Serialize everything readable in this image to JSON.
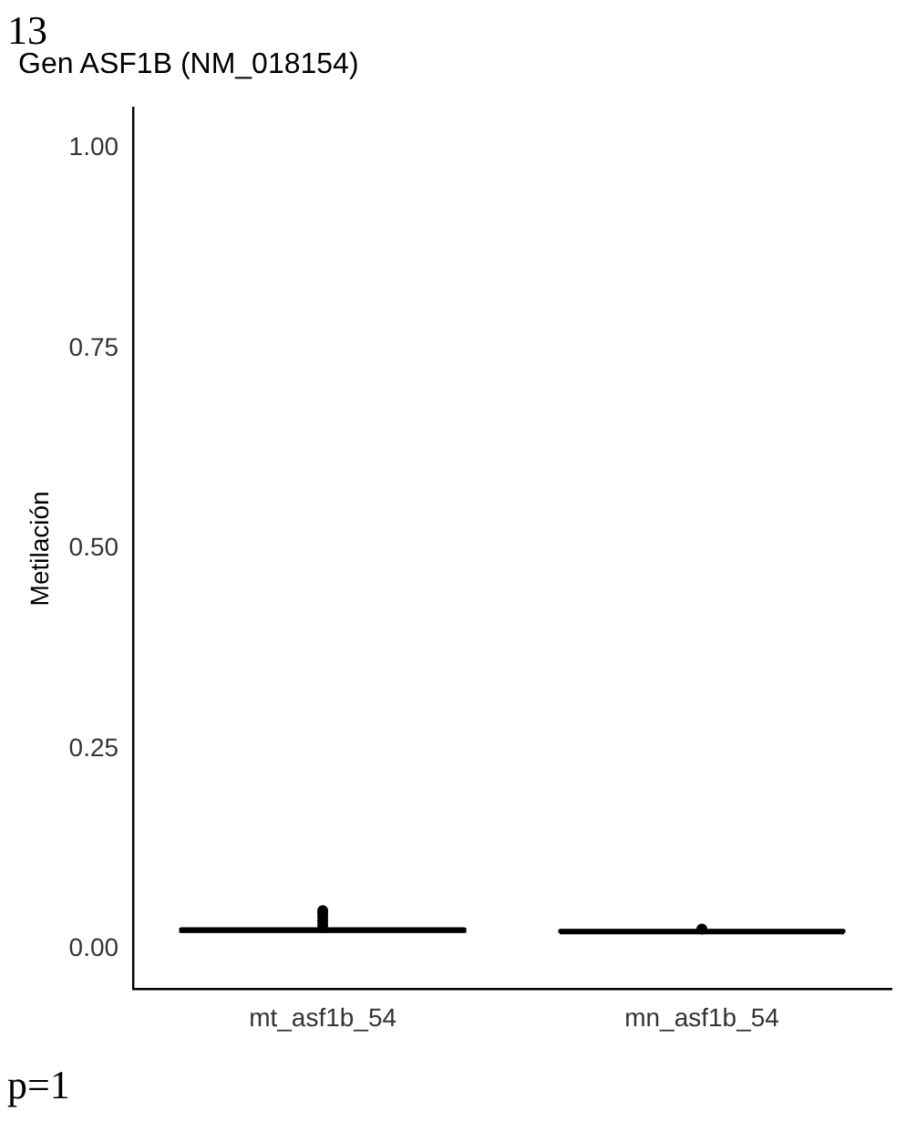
{
  "chart_data": {
    "type": "box",
    "title": "Gen ASF1B (NM_018154)",
    "ylabel": "Metilación",
    "categories": [
      "mt_asf1b_54",
      "mn_asf1b_54"
    ],
    "boxes": [
      {
        "low": 0.02,
        "q1": 0.022,
        "median": 0.024,
        "q3": 0.025,
        "high": 0.028,
        "outliers": [
          0.03,
          0.035,
          0.04,
          0.045,
          0.048
        ]
      },
      {
        "low": 0.021,
        "q1": 0.022,
        "median": 0.022,
        "q3": 0.023,
        "high": 0.024,
        "outliers": [
          0.025
        ]
      }
    ],
    "color": "#000000",
    "ylim": [
      -0.05,
      1.05
    ],
    "yticks": [
      {
        "value": 0,
        "label": "0.00"
      },
      {
        "value": 0.25,
        "label": "0.25"
      },
      {
        "value": 0.5,
        "label": "0.50"
      },
      {
        "value": 0.75,
        "label": "0.75"
      },
      {
        "value": 1,
        "label": "1.00"
      }
    ],
    "grid": false,
    "legend": false,
    "annotations": [
      "13",
      "p=1"
    ]
  }
}
